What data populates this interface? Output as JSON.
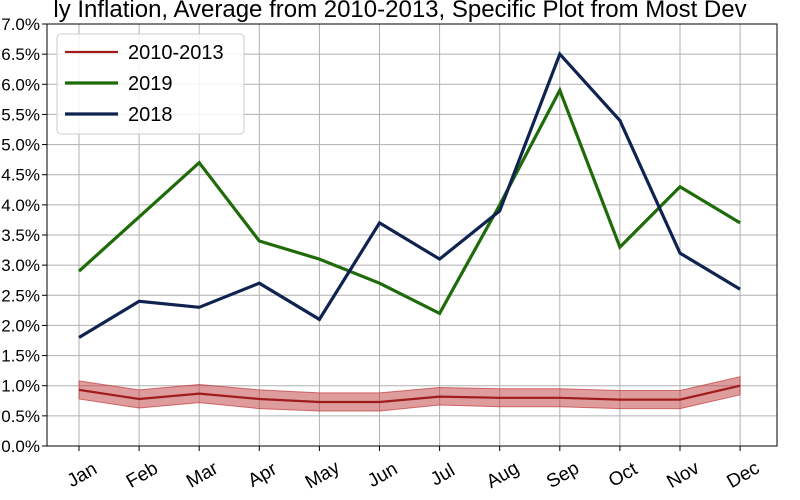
{
  "chart_data": {
    "type": "line",
    "title": "ly Inflation, Average from 2010-2013, Specific Plot from Most Dev",
    "xlabel": "",
    "ylabel": "",
    "categories": [
      "Jan",
      "Feb",
      "Mar",
      "Apr",
      "May",
      "Jun",
      "Jul",
      "Aug",
      "Sep",
      "Oct",
      "Nov",
      "Dec"
    ],
    "ylim": [
      0.0,
      7.0
    ],
    "yticks": [
      0.0,
      0.5,
      1.0,
      1.5,
      2.0,
      2.5,
      3.0,
      3.5,
      4.0,
      4.5,
      5.0,
      5.5,
      6.0,
      6.5,
      7.0
    ],
    "ytick_labels": [
      "0.0%",
      "0.5%",
      "1.0%",
      "1.5%",
      "2.0%",
      "2.5%",
      "3.0%",
      "3.5%",
      "4.0%",
      "4.5%",
      "5.0%",
      "5.5%",
      "6.0%",
      "6.5%",
      "7.0%"
    ],
    "grid": true,
    "legend_position": "top-left",
    "series": [
      {
        "name": "2010-2013",
        "color": "#a01c1c",
        "values": [
          0.93,
          0.78,
          0.87,
          0.78,
          0.73,
          0.73,
          0.82,
          0.8,
          0.8,
          0.77,
          0.77,
          1.0
        ],
        "band_lower": [
          0.78,
          0.63,
          0.72,
          0.62,
          0.58,
          0.58,
          0.68,
          0.65,
          0.65,
          0.62,
          0.62,
          0.85
        ],
        "band_upper": [
          1.08,
          0.93,
          1.02,
          0.93,
          0.88,
          0.88,
          0.97,
          0.95,
          0.95,
          0.92,
          0.92,
          1.15
        ]
      },
      {
        "name": "2019",
        "color": "#1f6b0a",
        "values": [
          2.9,
          3.8,
          4.7,
          3.4,
          3.1,
          2.7,
          2.2,
          4.0,
          5.9,
          3.3,
          4.3,
          3.7
        ]
      },
      {
        "name": "2018",
        "color": "#0f2350",
        "values": [
          1.8,
          2.4,
          2.3,
          2.7,
          2.1,
          3.7,
          3.1,
          3.9,
          6.5,
          5.4,
          3.2,
          2.6
        ]
      }
    ]
  }
}
